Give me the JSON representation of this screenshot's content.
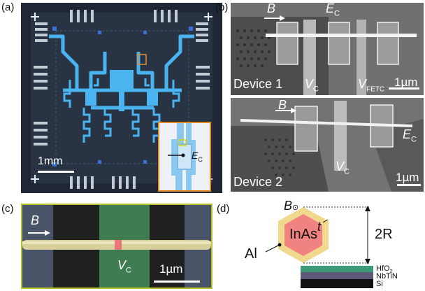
{
  "panel_a": {
    "label": "(a)",
    "scale": "1mm",
    "inset_label": "E",
    "inset_sub": "C"
  },
  "panel_b": {
    "label": "(b)",
    "device1": {
      "name": "Device 1",
      "b_label": "B",
      "ec_label": "E",
      "ec_sub": "C",
      "vc_label": "V",
      "vc_sub": "C",
      "vfetc_label": "V",
      "vfetc_sub": "FETC",
      "scale": "1µm"
    },
    "device2": {
      "name": "Device 2",
      "b_label": "B",
      "ec_label": "E",
      "ec_sub": "C",
      "vc_label": "V",
      "vc_sub": "C",
      "scale": "1µm"
    }
  },
  "panel_c": {
    "label": "(c)",
    "b_label": "B",
    "vc_label": "V",
    "vc_sub": "C",
    "scale": "1µm"
  },
  "panel_d": {
    "label": "(d)",
    "b_label": "B",
    "inas_label": "InAs",
    "t_label": "t",
    "r_label": "2R",
    "al_label": "Al",
    "layers": [
      "HfO",
      "NbTiN",
      "Si"
    ],
    "hfo_sub": "2"
  }
}
